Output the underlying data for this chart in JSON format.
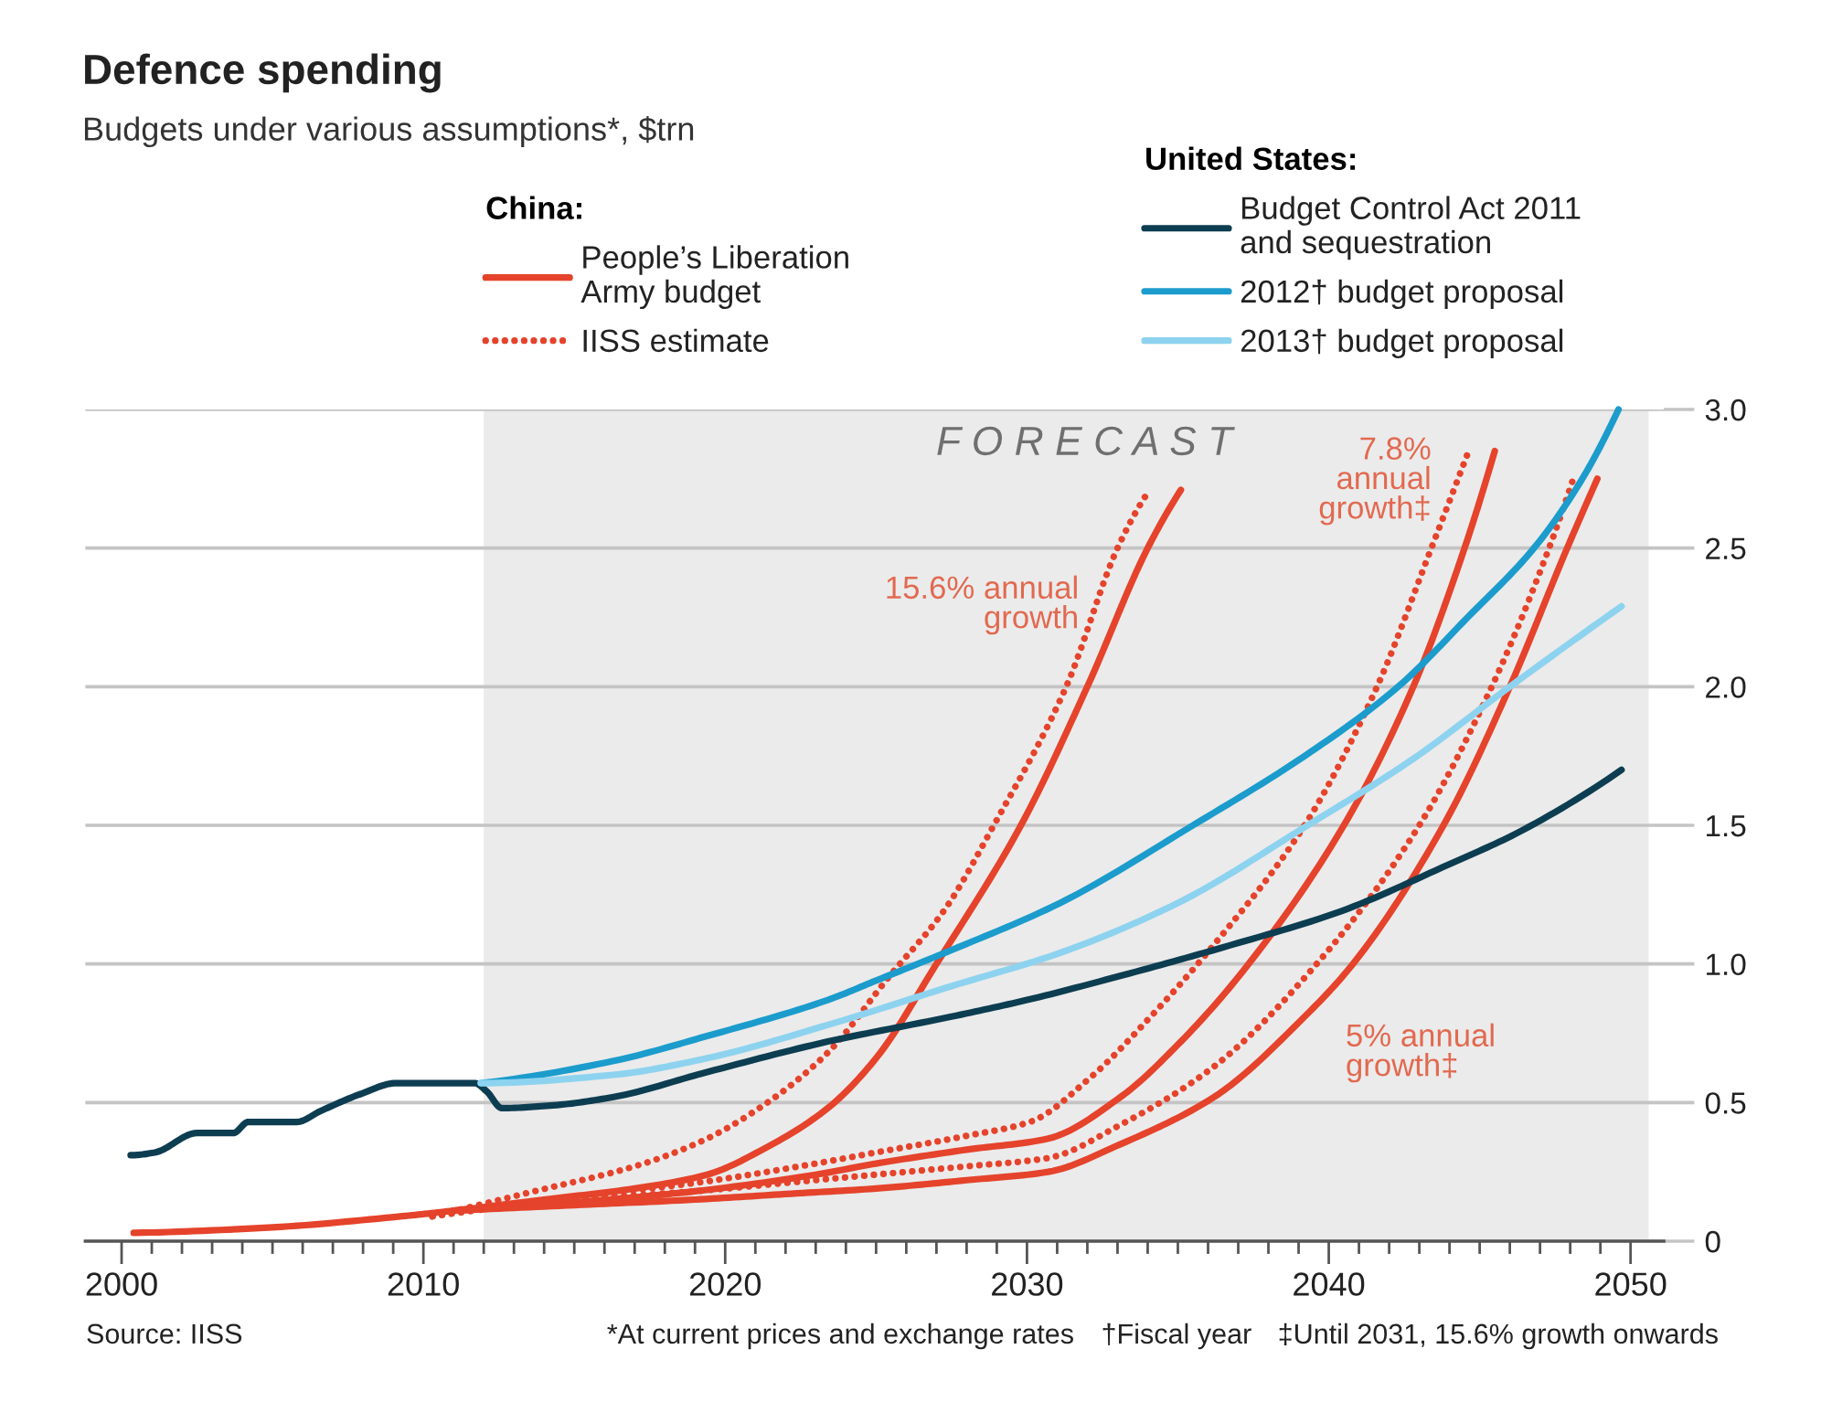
{
  "chart_data": {
    "type": "line",
    "title": "Defence spending",
    "subtitle": "Budgets under various assumptions*, $trn",
    "xlim": [
      1998.8,
      2051.1
    ],
    "xticks": [
      2000,
      {
        "value": 2001,
        "label": null
      },
      {
        "value": 2002,
        "label": null
      },
      {
        "value": 2003,
        "label": null
      },
      {
        "value": 2004,
        "label": null
      },
      {
        "value": 2005,
        "label": null
      },
      {
        "value": 2006,
        "label": null
      },
      {
        "value": 2007,
        "label": null
      },
      {
        "value": 2008,
        "label": null
      },
      {
        "value": 2009,
        "label": null
      },
      2010,
      {
        "value": 2011,
        "label": null
      },
      {
        "value": 2012,
        "label": null
      },
      {
        "value": 2013,
        "label": null
      },
      {
        "value": 2014,
        "label": null
      },
      {
        "value": 2015,
        "label": null
      },
      {
        "value": 2016,
        "label": null
      },
      {
        "value": 2017,
        "label": null
      },
      {
        "value": 2018,
        "label": null
      },
      {
        "value": 2019,
        "label": null
      },
      2020,
      {
        "value": 2021,
        "label": null
      },
      {
        "value": 2022,
        "label": null
      },
      {
        "value": 2023,
        "label": null
      },
      {
        "value": 2024,
        "label": null
      },
      {
        "value": 2025,
        "label": null
      },
      {
        "value": 2026,
        "label": null
      },
      {
        "value": 2027,
        "label": null
      },
      {
        "value": 2028,
        "label": null
      },
      {
        "value": 2029,
        "label": null
      },
      2030,
      {
        "value": 2031,
        "label": null
      },
      {
        "value": 2032,
        "label": null
      },
      {
        "value": 2033,
        "label": null
      },
      {
        "value": 2034,
        "label": null
      },
      {
        "value": 2035,
        "label": null
      },
      {
        "value": 2036,
        "label": null
      },
      {
        "value": 2037,
        "label": null
      },
      {
        "value": 2038,
        "label": null
      },
      {
        "value": 2039,
        "label": null
      },
      2040,
      {
        "value": 2041,
        "label": null
      },
      {
        "value": 2042,
        "label": null
      },
      {
        "value": 2043,
        "label": null
      },
      {
        "value": 2044,
        "label": null
      },
      {
        "value": 2045,
        "label": null
      },
      {
        "value": 2046,
        "label": null
      },
      {
        "value": 2047,
        "label": null
      },
      {
        "value": 2048,
        "label": null
      },
      {
        "value": 2049,
        "label": null
      },
      2050
    ],
    "ylim": [
      0,
      3.0
    ],
    "yticks": [
      0,
      0.5,
      {
        "value": 1,
        "label": "1.0"
      },
      1.5,
      {
        "value": 2,
        "label": "2.0"
      },
      2.5,
      {
        "value": 3,
        "label": "3.0"
      }
    ],
    "grid": "y",
    "legend": "top",
    "line_style": "solid",
    "series": [
      {
        "name": "People’s Liberation\nArmy budget",
        "color": "#e5432b",
        "x": [
          2000.4,
          2005,
          2009.3,
          2011,
          2014,
          2017,
          2019.4,
          2021.4,
          2023.4,
          2025,
          2027,
          2029.8,
          2032,
          2034,
          2035.1
        ],
        "values": [
          0.03,
          0.05,
          0.09,
          0.11,
          0.15,
          0.19,
          0.24,
          0.34,
          0.48,
          0.66,
          1.0,
          1.5,
          2.0,
          2.5,
          2.71
        ]
      },
      {
        "name": "IISS estimate",
        "color": "#e5432b",
        "line_style": "dotted",
        "x": [
          2010.3,
          2013.3,
          2017.3,
          2019.4,
          2021.4,
          2023.4,
          2025.4,
          2027.3,
          2028.9,
          2031.3,
          2033,
          2034
        ],
        "values": [
          0.09,
          0.17,
          0.28,
          0.37,
          0.5,
          0.68,
          0.95,
          1.2,
          1.5,
          2.0,
          2.5,
          2.7
        ]
      },
      {
        "color": "#e5432b",
        "x": [
          2011,
          2015,
          2019,
          2023,
          2025,
          2028,
          2030.7,
          2033.1,
          2035.1,
          2037.2,
          2040.5,
          2042.8,
          2044.5,
          2045.5
        ],
        "values": [
          0.11,
          0.14,
          0.18,
          0.24,
          0.28,
          0.33,
          0.37,
          0.52,
          0.72,
          0.98,
          1.5,
          2.0,
          2.5,
          2.85
        ]
      },
      {
        "color": "#e5432b",
        "line_style": "dotted",
        "x": [
          2010.3,
          2015,
          2019,
          2023,
          2025,
          2028,
          2030.1,
          2032.1,
          2034.1,
          2036.2,
          2039.2,
          2041.6,
          2043.4,
          2044.6
        ],
        "values": [
          0.09,
          0.16,
          0.21,
          0.28,
          0.32,
          0.38,
          0.43,
          0.59,
          0.81,
          1.07,
          1.5,
          2.0,
          2.5,
          2.84
        ]
      },
      {
        "color": "#e5432b",
        "x": [
          2011,
          2015,
          2019,
          2022,
          2025,
          2028,
          2030.7,
          2033.1,
          2036.2,
          2039.2,
          2040.8,
          2043.8,
          2046.0,
          2047.9,
          2048.9
        ],
        "values": [
          0.11,
          0.13,
          0.15,
          0.17,
          0.19,
          0.22,
          0.25,
          0.35,
          0.52,
          0.81,
          1.0,
          1.5,
          2.0,
          2.5,
          2.75
        ]
      },
      {
        "color": "#e5432b",
        "line_style": "dotted",
        "x": [
          2010.3,
          2015,
          2019,
          2022,
          2025,
          2028,
          2030.7,
          2033.1,
          2036.2,
          2039.6,
          2043.0,
          2045.4,
          2047.3,
          2048.1
        ],
        "values": [
          0.09,
          0.15,
          0.18,
          0.21,
          0.24,
          0.27,
          0.3,
          0.42,
          0.63,
          1.0,
          1.5,
          2.0,
          2.5,
          2.75
        ]
      },
      {
        "name": "Budget Control Act 2011\nand sequestration",
        "color": "#0d3d51",
        "x": [
          2000.3,
          2001.1,
          2002.5,
          2003.7,
          2004.2,
          2005.8,
          2006.6,
          2007.9,
          2009.1,
          2011.7,
          2012.1,
          2012.6,
          2014.3,
          2016.3,
          2019.4,
          2023.4,
          2027.5,
          2030,
          2033.2,
          2036.5,
          2040.4,
          2044,
          2046.2,
          2049.7
        ],
        "values": [
          0.31,
          0.32,
          0.39,
          0.39,
          0.43,
          0.43,
          0.47,
          0.53,
          0.57,
          0.57,
          0.54,
          0.48,
          0.49,
          0.52,
          0.61,
          0.72,
          0.81,
          0.87,
          0.96,
          1.06,
          1.19,
          1.36,
          1.47,
          1.7
        ]
      },
      {
        "name": "2012† budget proposal",
        "color": "#1b9ccc",
        "x": [
          2011.9,
          2016.3,
          2019.4,
          2023.4,
          2025.0,
          2027.5,
          2031.1,
          2035.5,
          2039.2,
          2042.3,
          2044.6,
          2046.8,
          2048.4,
          2049.6
        ],
        "values": [
          0.57,
          0.65,
          0.74,
          0.87,
          0.94,
          1.05,
          1.22,
          1.5,
          1.75,
          2.0,
          2.25,
          2.5,
          2.75,
          3.0
        ]
      },
      {
        "name": "2013† budget proposal",
        "color": "#8dd3ef",
        "x": [
          2011.9,
          2016.3,
          2019.4,
          2023.4,
          2027.5,
          2031.1,
          2035,
          2039.3,
          2042.8,
          2046.0,
          2049.7
        ],
        "values": [
          0.57,
          0.6,
          0.66,
          0.78,
          0.92,
          1.04,
          1.22,
          1.5,
          1.74,
          2.0,
          2.29
        ]
      }
    ],
    "bands": [
      {
        "axis": "x",
        "from": 2012,
        "to": 2050.6,
        "label": "F O R E C A S T",
        "color": "#ebebeb"
      }
    ],
    "annotations": [
      "China:",
      "United States:",
      "15.6% annual\ngrowth",
      "7.8%\nannual\ngrowth‡",
      "5% annual\ngrowth‡",
      "Source: IISS",
      "*At current prices and exchange rates",
      "†Fiscal year",
      "‡Until 2031, 15.6% growth onwards"
    ]
  }
}
